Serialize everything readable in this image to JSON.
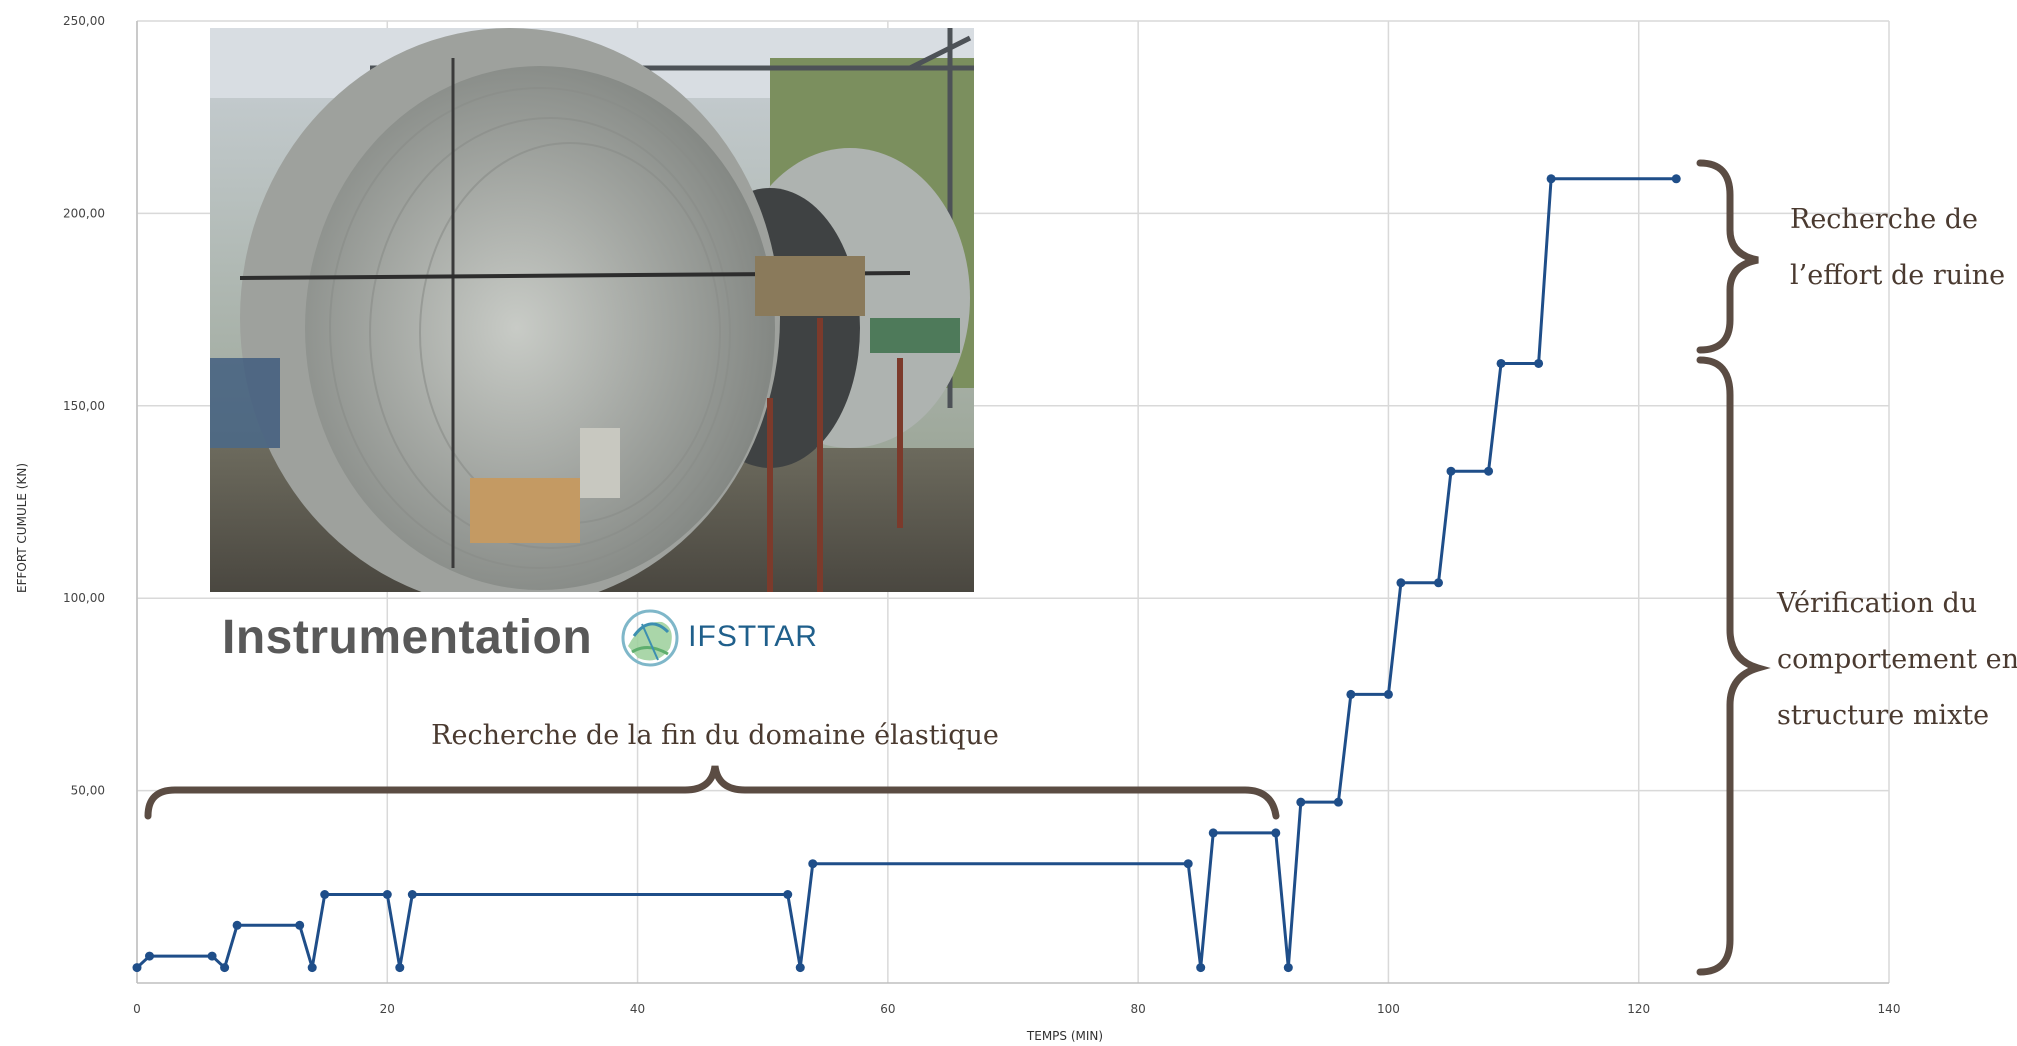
{
  "chart_data": {
    "type": "line",
    "xlabel": "TEMPS (MIN)",
    "ylabel": "EFFORT CUMULE (KN)",
    "xlim": [
      0,
      140
    ],
    "ylim": [
      0,
      250
    ],
    "x_ticks": [
      "0",
      "20",
      "40",
      "60",
      "80",
      "100",
      "120",
      "140"
    ],
    "y_ticks": [
      "50,00",
      "100,00",
      "150,00",
      "200,00",
      "250,00"
    ],
    "grid": true,
    "series": [
      {
        "color": "#1f4e89",
        "x": [
          0,
          1,
          6,
          7,
          8,
          13,
          14,
          15,
          20,
          21,
          22,
          52,
          53,
          54,
          84,
          85,
          86,
          91,
          92,
          93,
          96,
          97,
          100,
          101,
          104,
          105,
          108,
          109,
          112,
          113,
          123
        ],
        "y": [
          4,
          7,
          7,
          4,
          15,
          15,
          4,
          23,
          23,
          4,
          23,
          23,
          4,
          31,
          31,
          4,
          39,
          39,
          4,
          47,
          47,
          75,
          75,
          104,
          104,
          133,
          133,
          161,
          161,
          209,
          209
        ]
      }
    ],
    "annotations": [
      "Recherche de la fin du domaine élastique",
      "Recherche de",
      "l’effort de ruine",
      "Vérification du",
      "comportement en",
      "structure mixte"
    ]
  },
  "inset": {
    "caption": "Instrumentation",
    "logo_text": "IFSTTAR"
  }
}
